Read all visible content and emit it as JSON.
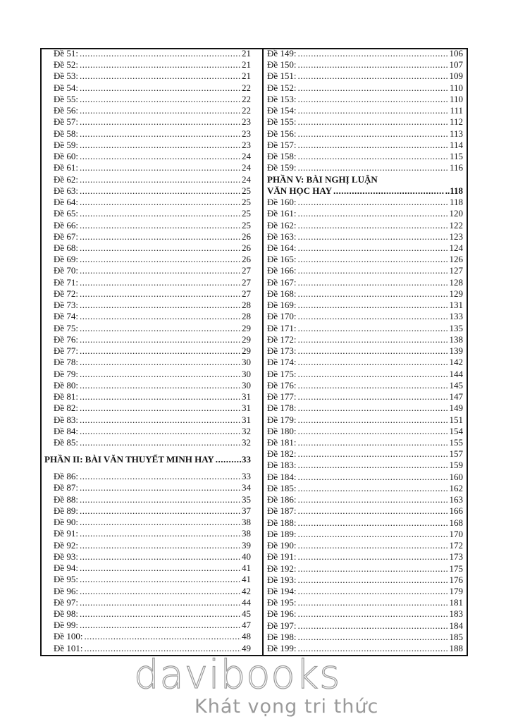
{
  "left_column": {
    "entries_before": [
      {
        "label": "Đề 51:",
        "page": "21"
      },
      {
        "label": "Đề 52:",
        "page": "21"
      },
      {
        "label": "Đề 53:",
        "page": "21"
      },
      {
        "label": "Đề 54:",
        "page": "22"
      },
      {
        "label": "Đề 55:",
        "page": "22"
      },
      {
        "label": "Đề 56:",
        "page": "22"
      },
      {
        "label": "Đề 57:",
        "page": "23"
      },
      {
        "label": "Đề 58:",
        "page": "23"
      },
      {
        "label": "Đề 59:",
        "page": "23"
      },
      {
        "label": "Đề 60:",
        "page": "24"
      },
      {
        "label": "Đề 61:",
        "page": "24"
      },
      {
        "label": "Đề 62:",
        "page": "24"
      },
      {
        "label": "Đề 63:",
        "page": "25"
      },
      {
        "label": "Đề 64:",
        "page": "25"
      },
      {
        "label": "Đề 65:",
        "page": "25"
      },
      {
        "label": "Đề 66:",
        "page": "25"
      },
      {
        "label": "Đề 67:",
        "page": "26"
      },
      {
        "label": "Đề 68:",
        "page": "26"
      },
      {
        "label": "Đề 69:",
        "page": "26"
      },
      {
        "label": "Đề 70:",
        "page": "27"
      },
      {
        "label": "Đề 71:",
        "page": "27"
      },
      {
        "label": "Đề 72:",
        "page": "27"
      },
      {
        "label": "Đề 73:",
        "page": "28"
      },
      {
        "label": "Đề 74:",
        "page": "28"
      },
      {
        "label": "Đề 75:",
        "page": "29"
      },
      {
        "label": "Đề 76:",
        "page": "29"
      },
      {
        "label": "Đề 77:",
        "page": "29"
      },
      {
        "label": "Đề 78:",
        "page": "30"
      },
      {
        "label": "Đề 79:",
        "page": "30"
      },
      {
        "label": "Đề 80:",
        "page": "30"
      },
      {
        "label": "Đề 81:",
        "page": "31"
      },
      {
        "label": "Đề 82:",
        "page": "31"
      },
      {
        "label": "Đề 83:",
        "page": "31"
      },
      {
        "label": "Đề 84:",
        "page": "32"
      },
      {
        "label": "Đề 85:",
        "page": "32"
      }
    ],
    "section": {
      "title": "PHẦN II: BÀI VĂN THUYẾT MINH HAY",
      "page": "33"
    },
    "entries_after": [
      {
        "label": "Đề 86:",
        "page": "33"
      },
      {
        "label": "Đề 87:",
        "page": "34"
      },
      {
        "label": "Đề 88:",
        "page": "35"
      },
      {
        "label": "Đề 89:",
        "page": "37"
      },
      {
        "label": "Đề 90:",
        "page": "38"
      },
      {
        "label": "Đề 91:",
        "page": "38"
      },
      {
        "label": "Đề 92:",
        "page": "39"
      },
      {
        "label": "Đề 93:",
        "page": "40"
      },
      {
        "label": "Đề 94:",
        "page": "41"
      },
      {
        "label": "Đề 95:",
        "page": "41"
      },
      {
        "label": "Đề 96:",
        "page": "42"
      },
      {
        "label": "Đề 97:",
        "page": "44"
      },
      {
        "label": "Đề 98:",
        "page": "45"
      },
      {
        "label": "Đề 99:",
        "page": "47"
      },
      {
        "label": "Đề 100:",
        "page": "48"
      },
      {
        "label": "Đề 101:",
        "page": "49"
      }
    ]
  },
  "right_column": {
    "entries_before": [
      {
        "label": "Đề 149:",
        "page": "106"
      },
      {
        "label": "Đề 150:",
        "page": "107"
      },
      {
        "label": "Đề 151:",
        "page": "109"
      },
      {
        "label": "Đề 152:",
        "page": "110"
      },
      {
        "label": "Đề 153:",
        "page": "110"
      },
      {
        "label": "Đề 154:",
        "page": "111"
      },
      {
        "label": "Đề 155:",
        "page": "112"
      },
      {
        "label": "Đề 156:",
        "page": "113"
      },
      {
        "label": "Đề 157:",
        "page": "114"
      },
      {
        "label": "Đề 158:",
        "page": "115"
      },
      {
        "label": "Đề 159:",
        "page": "116"
      }
    ],
    "section": {
      "title_line1": "PHẦN V: BÀI NGHỊ LUẬN",
      "title_line2": "VĂN HỌC HAY",
      "page": "118"
    },
    "entries_after": [
      {
        "label": "Đề 160:",
        "page": "118"
      },
      {
        "label": "Đề 161:",
        "page": "120"
      },
      {
        "label": "Đề 162:",
        "page": "122"
      },
      {
        "label": "Đề 163:",
        "page": "123"
      },
      {
        "label": "Đề 164:",
        "page": "124"
      },
      {
        "label": "Đề 165:",
        "page": "126"
      },
      {
        "label": "Đề 166:",
        "page": "127"
      },
      {
        "label": "Đề 167:",
        "page": "128"
      },
      {
        "label": "Đề 168:",
        "page": "129"
      },
      {
        "label": "Đề 169:",
        "page": "131"
      },
      {
        "label": "Đề 170:",
        "page": "133"
      },
      {
        "label": "Đề 171:",
        "page": "135"
      },
      {
        "label": "Đề 172:",
        "page": "138"
      },
      {
        "label": "Đề 173:",
        "page": "139"
      },
      {
        "label": "Đề 174:",
        "page": "142"
      },
      {
        "label": "Đề 175:",
        "page": "144"
      },
      {
        "label": "Đề 176:",
        "page": "145"
      },
      {
        "label": "Đề 177:",
        "page": "147"
      },
      {
        "label": "Đề 178:",
        "page": "149"
      },
      {
        "label": "Đề 179:",
        "page": "151"
      },
      {
        "label": "Đề 180:",
        "page": "154"
      },
      {
        "label": "Đề 181:",
        "page": "155"
      },
      {
        "label": "Đề 182:",
        "page": "157"
      },
      {
        "label": "Đề 183:",
        "page": "159"
      },
      {
        "label": "Đề 184:",
        "page": "160"
      },
      {
        "label": "Đề 185:",
        "page": "162"
      },
      {
        "label": "Đề 186:",
        "page": "163"
      },
      {
        "label": "Đề 187:",
        "page": "166"
      },
      {
        "label": "Đề 188:",
        "page": "168"
      },
      {
        "label": "Đề 189:",
        "page": "170"
      },
      {
        "label": "Đề 190:",
        "page": "172"
      },
      {
        "label": "Đề 191:",
        "page": "173"
      },
      {
        "label": "Đề 192:",
        "page": "175"
      },
      {
        "label": "Đề 193:",
        "page": "176"
      },
      {
        "label": "Đề 194:",
        "page": "179"
      },
      {
        "label": "Đề 195:",
        "page": "181"
      },
      {
        "label": "Đề 196:",
        "page": "183"
      },
      {
        "label": "Đề 197:",
        "page": "184"
      },
      {
        "label": "Đề 198:",
        "page": "185"
      },
      {
        "label": "Đề 199:",
        "page": "188"
      }
    ]
  },
  "watermark": {
    "brand": "davibooks",
    "slogan": "Khát vọng tri thức",
    "color": "#9a9a9a"
  }
}
